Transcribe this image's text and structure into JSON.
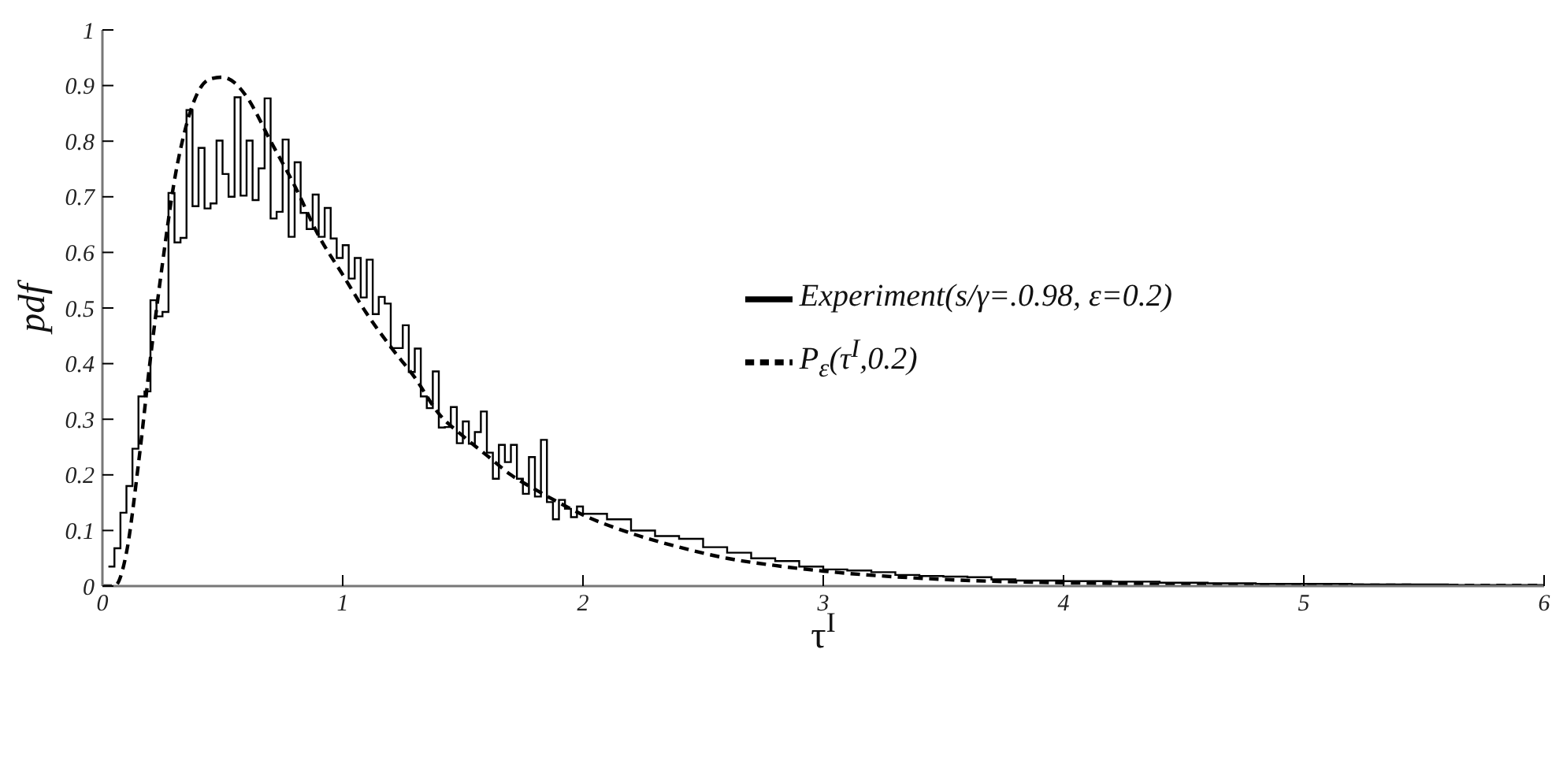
{
  "chart_data": {
    "type": "step",
    "xlabel": "τ$^{I}$",
    "ylabel": "pdf",
    "x": [
      0.025,
      0.05,
      0.075,
      0.1,
      0.125,
      0.15,
      0.175,
      0.2,
      0.225,
      0.25,
      0.275,
      0.3,
      0.325,
      0.35,
      0.375,
      0.4,
      0.425,
      0.45,
      0.475,
      0.5,
      0.525,
      0.55,
      0.575,
      0.6,
      0.625,
      0.65,
      0.675,
      0.7,
      0.725,
      0.75,
      0.775,
      0.8,
      0.825,
      0.85,
      0.875,
      0.9,
      0.925,
      0.95,
      0.975,
      1.0,
      1.025,
      1.05,
      1.075,
      1.1,
      1.125,
      1.15,
      1.175,
      1.2,
      1.225,
      1.25,
      1.275,
      1.3,
      1.325,
      1.35,
      1.375,
      1.4,
      1.425,
      1.45,
      1.475,
      1.5,
      1.525,
      1.55,
      1.575,
      1.6,
      1.625,
      1.65,
      1.675,
      1.7,
      1.725,
      1.75,
      1.775,
      1.8,
      1.825,
      1.85,
      1.875,
      1.9,
      1.925,
      1.95,
      1.975,
      2.0,
      2.1,
      2.2,
      2.3,
      2.4,
      2.5,
      2.6,
      2.7,
      2.8,
      2.9,
      3.0,
      3.1,
      3.2,
      3.3,
      3.4,
      3.5,
      3.6,
      3.7,
      3.8,
      3.9,
      4.0,
      4.2,
      4.4,
      4.6,
      4.8,
      5.0,
      5.2,
      5.4,
      5.6,
      5.8,
      6.0
    ],
    "series": [
      {
        "name": "Experiment(s/γ=.0.98, ε=0.2)",
        "color": "#000000",
        "values": [
          0.035,
          0.068,
          0.132,
          0.18,
          0.247,
          0.341,
          0.35,
          0.514,
          0.485,
          0.493,
          0.707,
          0.618,
          0.626,
          0.856,
          0.683,
          0.788,
          0.679,
          0.688,
          0.801,
          0.741,
          0.7,
          0.879,
          0.702,
          0.801,
          0.694,
          0.751,
          0.877,
          0.661,
          0.673,
          0.803,
          0.628,
          0.762,
          0.671,
          0.642,
          0.704,
          0.628,
          0.68,
          0.625,
          0.59,
          0.613,
          0.553,
          0.59,
          0.519,
          0.587,
          0.489,
          0.52,
          0.508,
          0.428,
          0.428,
          0.469,
          0.385,
          0.427,
          0.341,
          0.32,
          0.386,
          0.285,
          0.286,
          0.322,
          0.257,
          0.296,
          0.256,
          0.277,
          0.314,
          0.24,
          0.193,
          0.254,
          0.223,
          0.254,
          0.193,
          0.166,
          0.232,
          0.161,
          0.263,
          0.151,
          0.12,
          0.155,
          0.139,
          0.124,
          0.143,
          0.13,
          0.12,
          0.1,
          0.09,
          0.085,
          0.07,
          0.06,
          0.05,
          0.045,
          0.035,
          0.03,
          0.028,
          0.025,
          0.02,
          0.018,
          0.017,
          0.016,
          0.012,
          0.01,
          0.01,
          0.009,
          0.008,
          0.006,
          0.005,
          0.004,
          0.004,
          0.003,
          0.003,
          0.002,
          0.002,
          0.002
        ]
      },
      {
        "name": "P$_{ε}$(τ$^{I}$,0.2)",
        "type": "line",
        "line_style": "dashed",
        "color": "#000000",
        "x": [
          0,
          0.05,
          0.1,
          0.15,
          0.2,
          0.25,
          0.3,
          0.35,
          0.4,
          0.45,
          0.5,
          0.55,
          0.6,
          0.7,
          0.8,
          0.9,
          1.0,
          1.1,
          1.2,
          1.3,
          1.4,
          1.5,
          1.6,
          1.7,
          1.8,
          1.9,
          2.0,
          2.2,
          2.4,
          2.6,
          2.8,
          3.0,
          3.5,
          4.0,
          5.0,
          6.0
        ],
        "values": [
          0,
          0,
          0.06,
          0.22,
          0.41,
          0.58,
          0.73,
          0.83,
          0.89,
          0.912,
          0.915,
          0.905,
          0.88,
          0.8,
          0.72,
          0.63,
          0.56,
          0.49,
          0.43,
          0.375,
          0.31,
          0.27,
          0.235,
          0.2,
          0.174,
          0.15,
          0.128,
          0.095,
          0.07,
          0.05,
          0.037,
          0.027,
          0.012,
          0.006,
          0.002,
          0.001
        ]
      }
    ],
    "xlim": [
      0,
      6
    ],
    "xticks": [
      0,
      1,
      2,
      3,
      4,
      5,
      6
    ],
    "ylim": [
      0,
      1
    ],
    "yticks": [
      0,
      0.1,
      0.2,
      0.3,
      0.4,
      0.5,
      0.6,
      0.7,
      0.8,
      0.9,
      1
    ],
    "grid": false,
    "legend": "right"
  }
}
